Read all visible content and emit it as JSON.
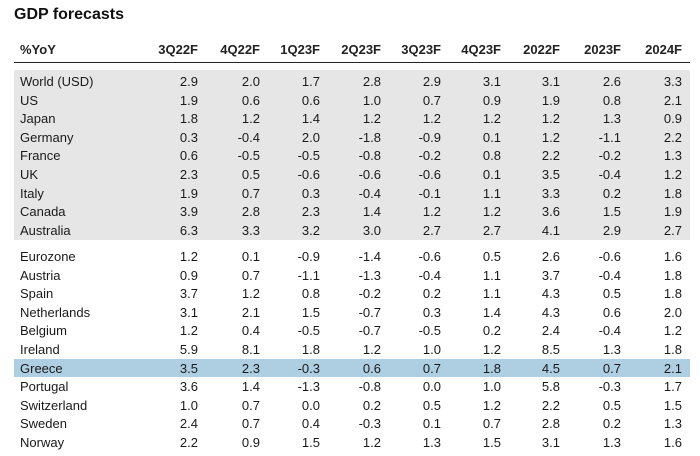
{
  "title": "GDP forecasts",
  "columns": [
    "%YoY",
    "3Q22F",
    "4Q22F",
    "1Q23F",
    "2Q23F",
    "3Q23F",
    "4Q23F",
    "2022F",
    "2023F",
    "2024F"
  ],
  "group1": [
    {
      "name": "World (USD)",
      "values": [
        "2.9",
        "2.0",
        "1.7",
        "2.8",
        "2.9",
        "3.1",
        "3.1",
        "2.6",
        "3.3"
      ]
    },
    {
      "name": "US",
      "values": [
        "1.9",
        "0.6",
        "0.6",
        "1.0",
        "0.7",
        "0.9",
        "1.9",
        "0.8",
        "2.1"
      ]
    },
    {
      "name": "Japan",
      "values": [
        "1.8",
        "1.2",
        "1.4",
        "1.2",
        "1.2",
        "1.2",
        "1.2",
        "1.3",
        "0.9"
      ]
    },
    {
      "name": "Germany",
      "values": [
        "0.3",
        "-0.4",
        "2.0",
        "-1.8",
        "-0.9",
        "0.1",
        "1.2",
        "-1.1",
        "2.2"
      ]
    },
    {
      "name": "France",
      "values": [
        "0.6",
        "-0.5",
        "-0.5",
        "-0.8",
        "-0.2",
        "0.8",
        "2.2",
        "-0.2",
        "1.3"
      ]
    },
    {
      "name": "UK",
      "values": [
        "2.3",
        "0.5",
        "-0.6",
        "-0.6",
        "-0.6",
        "0.1",
        "3.5",
        "-0.4",
        "1.2"
      ]
    },
    {
      "name": "Italy",
      "values": [
        "1.9",
        "0.7",
        "0.3",
        "-0.4",
        "-0.1",
        "1.1",
        "3.3",
        "0.2",
        "1.8"
      ]
    },
    {
      "name": "Canada",
      "values": [
        "3.9",
        "2.8",
        "2.3",
        "1.4",
        "1.2",
        "1.2",
        "3.6",
        "1.5",
        "1.9"
      ]
    },
    {
      "name": "Australia",
      "values": [
        "6.3",
        "3.3",
        "3.2",
        "3.0",
        "2.7",
        "2.7",
        "4.1",
        "2.9",
        "2.7"
      ]
    }
  ],
  "group2": [
    {
      "name": "Eurozone",
      "values": [
        "1.2",
        "0.1",
        "-0.9",
        "-1.4",
        "-0.6",
        "0.5",
        "2.6",
        "-0.6",
        "1.6"
      ]
    },
    {
      "name": "Austria",
      "values": [
        "0.9",
        "0.7",
        "-1.1",
        "-1.3",
        "-0.4",
        "1.1",
        "3.7",
        "-0.4",
        "1.8"
      ]
    },
    {
      "name": "Spain",
      "values": [
        "3.7",
        "1.2",
        "0.8",
        "-0.2",
        "0.2",
        "1.1",
        "4.3",
        "0.5",
        "1.8"
      ]
    },
    {
      "name": "Netherlands",
      "values": [
        "3.1",
        "2.1",
        "1.5",
        "-0.7",
        "0.3",
        "1.4",
        "4.3",
        "0.6",
        "2.0"
      ]
    },
    {
      "name": "Belgium",
      "values": [
        "1.2",
        "0.4",
        "-0.5",
        "-0.7",
        "-0.5",
        "0.2",
        "2.4",
        "-0.4",
        "1.2"
      ]
    },
    {
      "name": "Ireland",
      "values": [
        "5.9",
        "8.1",
        "1.8",
        "1.2",
        "1.0",
        "1.2",
        "8.5",
        "1.3",
        "1.8"
      ]
    },
    {
      "name": "Greece",
      "values": [
        "3.5",
        "2.3",
        "-0.3",
        "0.6",
        "0.7",
        "1.8",
        "4.5",
        "0.7",
        "2.1"
      ],
      "highlight": true
    },
    {
      "name": "Portugal",
      "values": [
        "3.6",
        "1.4",
        "-1.3",
        "-0.8",
        "0.0",
        "1.0",
        "5.8",
        "-0.3",
        "1.7"
      ]
    },
    {
      "name": "Switzerland",
      "values": [
        "1.0",
        "0.7",
        "0.0",
        "0.2",
        "0.5",
        "1.2",
        "2.2",
        "0.5",
        "1.5"
      ]
    },
    {
      "name": "Sweden",
      "values": [
        "2.4",
        "0.7",
        "0.4",
        "-0.3",
        "0.1",
        "0.7",
        "2.8",
        "0.2",
        "1.3"
      ]
    },
    {
      "name": "Norway",
      "values": [
        "2.2",
        "0.9",
        "1.5",
        "1.2",
        "1.3",
        "1.5",
        "3.1",
        "1.3",
        "1.6"
      ]
    }
  ],
  "colors": {
    "band": "#e6e6e6",
    "highlight": "#aecfe2"
  }
}
